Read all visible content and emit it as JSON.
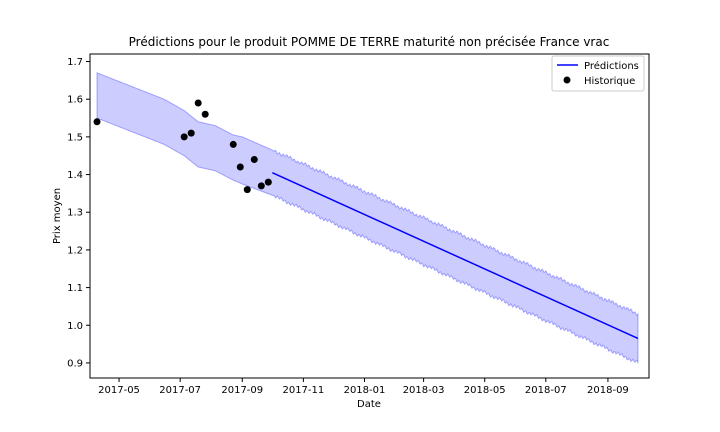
{
  "chart_data": {
    "type": "line",
    "title": "Prédictions pour le produit POMME DE TERRE maturité non précisée France vrac",
    "xlabel": "Date",
    "ylabel": "Prix moyen",
    "x_type": "date",
    "xlim": [
      "2017-04-02",
      "2018-10-12"
    ],
    "ylim": [
      0.86,
      1.72
    ],
    "x_ticks": [
      "2017-05-01",
      "2017-07-01",
      "2017-09-01",
      "2017-11-01",
      "2018-01-01",
      "2018-03-01",
      "2018-05-01",
      "2018-07-01",
      "2018-09-01"
    ],
    "x_tick_labels": [
      "2017-05",
      "2017-07",
      "2017-09",
      "2017-11",
      "2018-01",
      "2018-03",
      "2018-05",
      "2018-07",
      "2018-09"
    ],
    "y_ticks": [
      0.9,
      1.0,
      1.1,
      1.2,
      1.3,
      1.4,
      1.5,
      1.6,
      1.7
    ],
    "y_tick_labels": [
      "0.9",
      "1.0",
      "1.1",
      "1.2",
      "1.3",
      "1.4",
      "1.5",
      "1.6",
      "1.7"
    ],
    "grid": false,
    "legend": {
      "position": "top-right",
      "entries": [
        "Prédictions",
        "Historique"
      ]
    },
    "series": [
      {
        "name": "Prédictions",
        "kind": "line",
        "color": "#0000ff",
        "x": [
          "2017-10-01",
          "2018-10-01"
        ],
        "y": [
          1.405,
          0.965
        ]
      },
      {
        "name": "Historique",
        "kind": "scatter",
        "color": "#000000",
        "x": [
          "2017-04-09",
          "2017-07-05",
          "2017-07-12",
          "2017-07-19",
          "2017-07-26",
          "2017-08-23",
          "2017-08-30",
          "2017-09-06",
          "2017-09-13",
          "2017-09-20",
          "2017-09-27"
        ],
        "y": [
          1.54,
          1.5,
          1.51,
          1.59,
          1.56,
          1.48,
          1.42,
          1.36,
          1.44,
          1.37,
          1.38
        ]
      }
    ],
    "band": {
      "color": "#0000ff",
      "opacity": 0.2,
      "x": [
        "2017-04-09",
        "2017-06-15",
        "2017-07-05",
        "2017-07-19",
        "2017-08-05",
        "2017-08-23",
        "2017-09-01",
        "2017-10-01",
        "2018-10-01"
      ],
      "upper": [
        1.67,
        1.6,
        1.57,
        1.54,
        1.53,
        1.505,
        1.5,
        1.465,
        1.03
      ],
      "lower": [
        1.55,
        1.48,
        1.45,
        1.42,
        1.41,
        1.385,
        1.375,
        1.345,
        0.9
      ]
    }
  }
}
